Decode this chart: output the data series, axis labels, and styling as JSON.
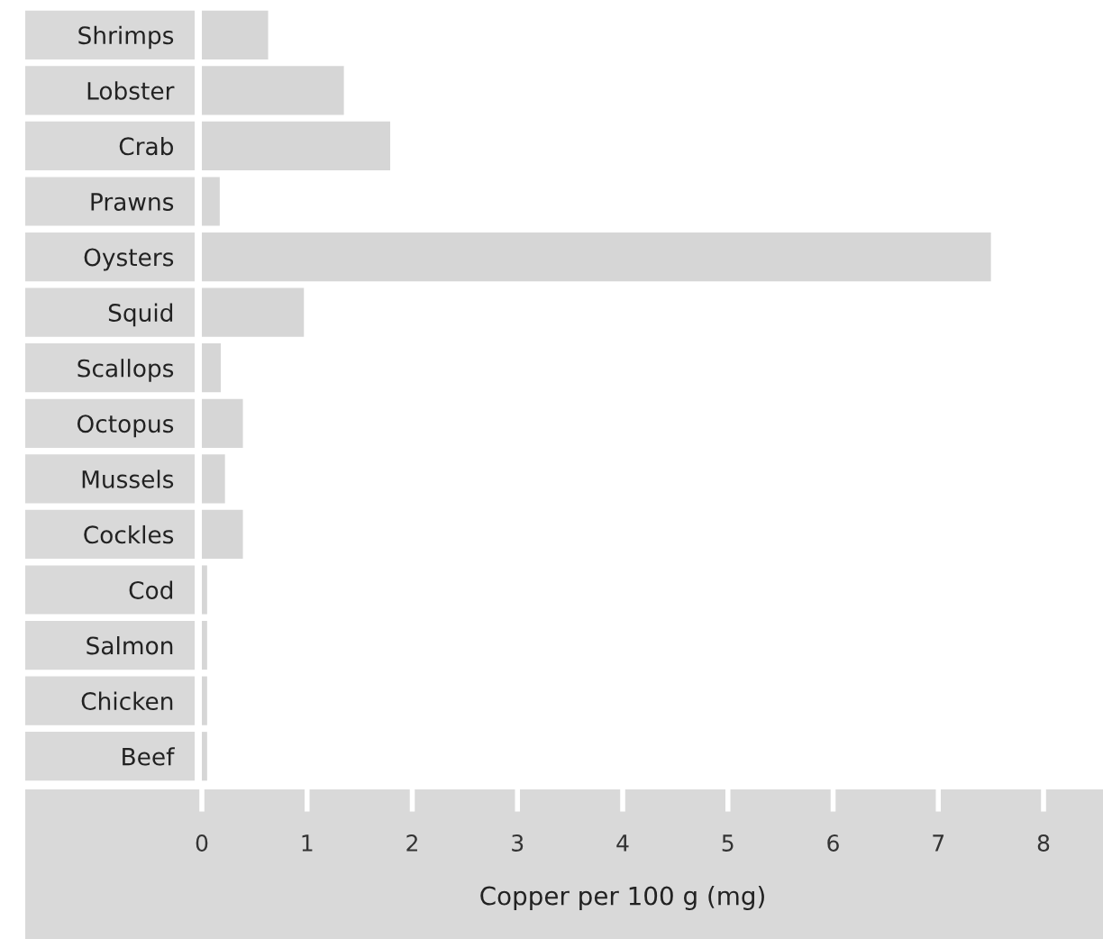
{
  "chart_data": {
    "type": "bar",
    "orientation": "horizontal",
    "xlabel": "Copper per 100 g (mg)",
    "categories": [
      "Shrimps",
      "Lobster",
      "Crab",
      "Prawns",
      "Oysters",
      "Squid",
      "Scallops",
      "Octopus",
      "Mussels",
      "Cockles",
      "Cod",
      "Salmon",
      "Chicken",
      "Beef"
    ],
    "values": [
      0.63,
      1.35,
      1.79,
      0.17,
      7.5,
      0.97,
      0.18,
      0.39,
      0.22,
      0.39,
      0.05,
      0.05,
      0.05,
      0.05
    ],
    "color": "#d6d6d6",
    "xlim": [
      0,
      8
    ],
    "xticks": [
      0,
      1,
      2,
      3,
      4,
      5,
      6,
      7,
      8
    ],
    "grid": false,
    "legend": false
  }
}
